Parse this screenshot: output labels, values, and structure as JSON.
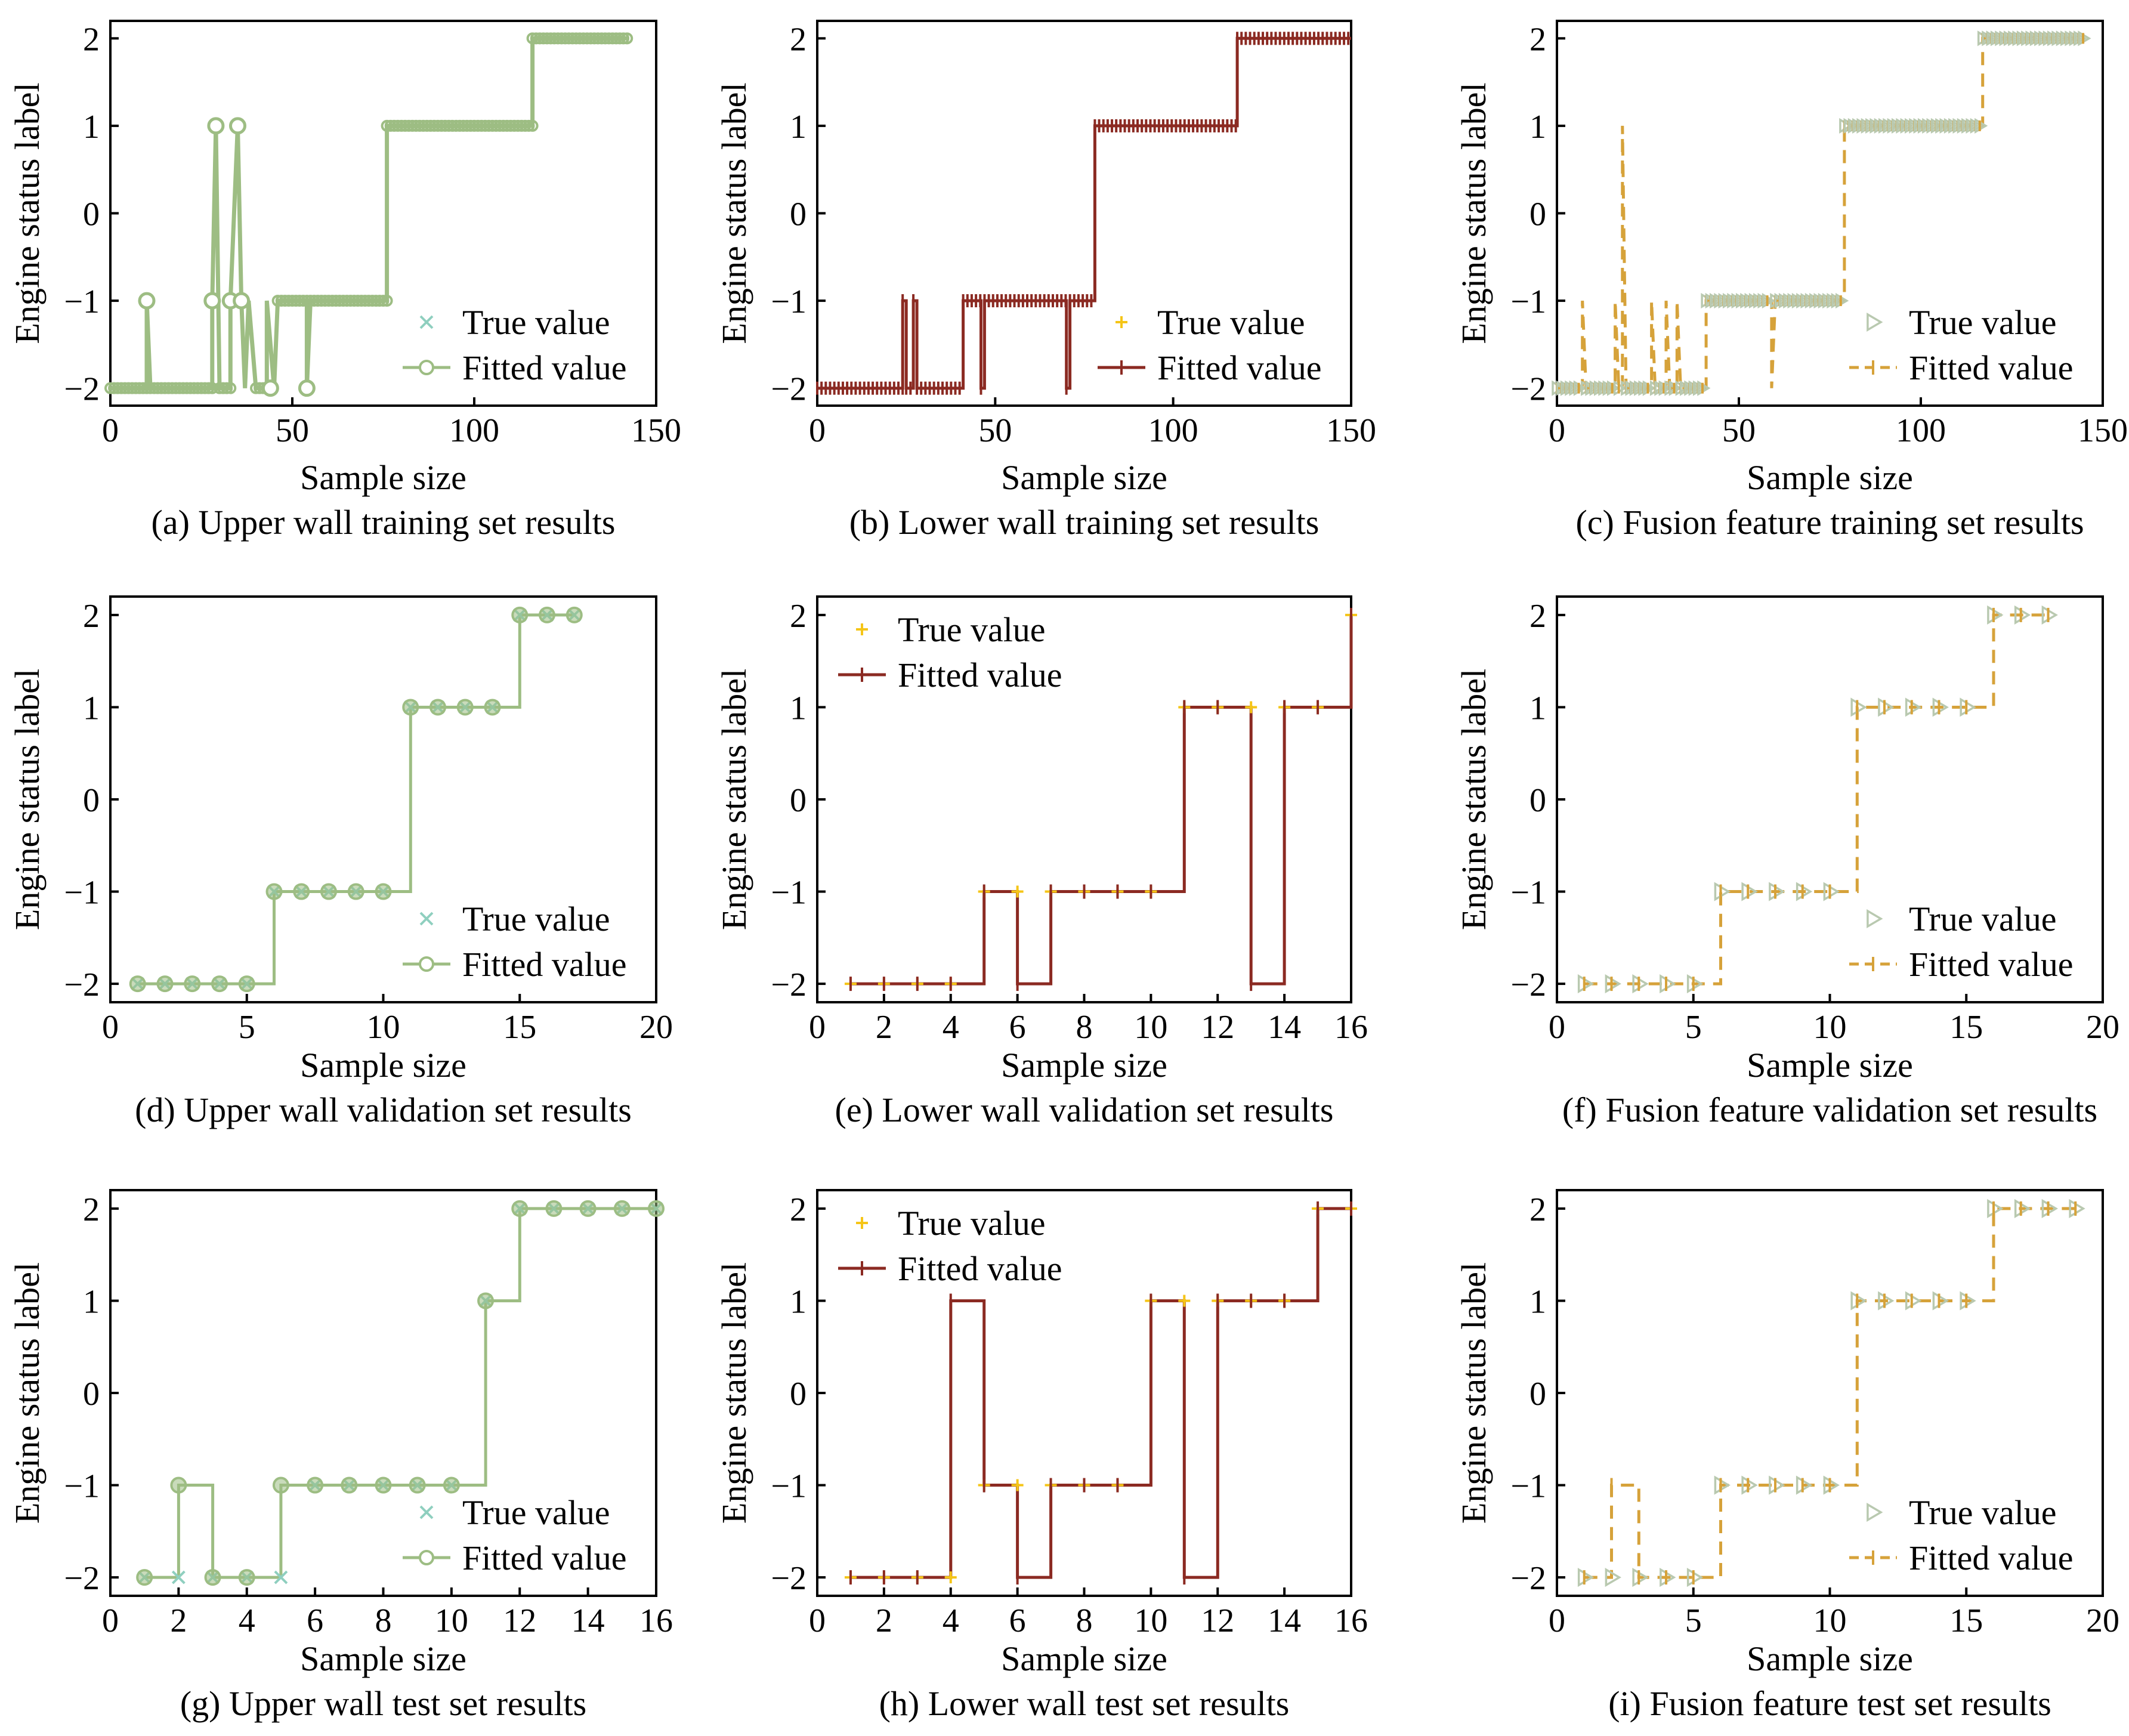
{
  "figure": {
    "colors": {
      "upper": "#9dbd83",
      "lower": "#8b2a22",
      "fusion": "#d6a23a",
      "true_lower": "#f5c518",
      "true_fusion_marker": "#b9c9b0",
      "true_upper": "#8fcfbf"
    }
  },
  "chart_data": [
    {
      "id": "a",
      "type": "line",
      "caption": "(a) Upper wall training set results",
      "xlabel": "Sample size",
      "ylabel": "Engine status label",
      "xlim": [
        0,
        150
      ],
      "ylim": [
        -2.2,
        2.2
      ],
      "xticks": [
        0,
        50,
        100,
        150
      ],
      "yticks": [
        -2,
        -1,
        0,
        1,
        2
      ],
      "style": "upper",
      "legend_position": "lower-right",
      "legend": {
        "true": "True value",
        "fitted": "Fitted value"
      },
      "segments": [
        [
          0,
          -2
        ],
        [
          10,
          -2
        ],
        [
          10,
          -1
        ],
        [
          11,
          -2
        ],
        [
          28,
          -2
        ],
        [
          28,
          -1
        ],
        [
          29,
          1
        ],
        [
          30,
          -2
        ],
        [
          33,
          -2
        ],
        [
          33,
          -1
        ],
        [
          35,
          1
        ],
        [
          36,
          -1
        ],
        [
          37,
          -2
        ],
        [
          38,
          -1
        ],
        [
          40,
          -2
        ],
        [
          43,
          -2
        ],
        [
          43,
          -1
        ],
        [
          45,
          -2
        ],
        [
          46,
          -1
        ],
        [
          54,
          -1
        ],
        [
          54,
          -2
        ],
        [
          55,
          -1
        ],
        [
          76,
          -1
        ],
        [
          76,
          1
        ],
        [
          116,
          1
        ],
        [
          116,
          2
        ],
        [
          142,
          2
        ]
      ],
      "markers_fitted": [
        [
          10,
          -1
        ],
        [
          29,
          1
        ],
        [
          35,
          1
        ],
        [
          28,
          -1
        ],
        [
          33,
          -1
        ],
        [
          36,
          -1
        ],
        [
          44,
          -2
        ],
        [
          54,
          -2
        ]
      ]
    },
    {
      "id": "b",
      "type": "line",
      "caption": "(b) Lower wall training set results",
      "xlabel": "Sample size",
      "ylabel": "Engine status label",
      "xlim": [
        0,
        150
      ],
      "ylim": [
        -2.2,
        2.2
      ],
      "xticks": [
        0,
        50,
        100,
        150
      ],
      "yticks": [
        -2,
        -1,
        0,
        1,
        2
      ],
      "style": "lower",
      "legend_position": "lower-right",
      "legend": {
        "true": "True value",
        "fitted": "Fitted value"
      },
      "segments": [
        [
          0,
          -2
        ],
        [
          24,
          -2
        ],
        [
          24,
          -1
        ],
        [
          25,
          -1
        ],
        [
          25,
          -2
        ],
        [
          27,
          -2
        ],
        [
          27,
          -1
        ],
        [
          28,
          -1
        ],
        [
          28,
          -2
        ],
        [
          41,
          -2
        ],
        [
          41,
          -1
        ],
        [
          46,
          -1
        ],
        [
          46,
          -2
        ],
        [
          47,
          -2
        ],
        [
          47,
          -1
        ],
        [
          70,
          -1
        ],
        [
          70,
          -2
        ],
        [
          71,
          -2
        ],
        [
          71,
          -1
        ],
        [
          78,
          -1
        ],
        [
          78,
          1
        ],
        [
          118,
          1
        ],
        [
          118,
          2
        ],
        [
          150,
          2
        ]
      ]
    },
    {
      "id": "c",
      "type": "line",
      "caption": "(c) Fusion feature training set results",
      "xlabel": "Sample size",
      "ylabel": "Engine status label",
      "xlim": [
        0,
        150
      ],
      "ylim": [
        -2.2,
        2.2
      ],
      "xticks": [
        0,
        50,
        100,
        150
      ],
      "yticks": [
        -2,
        -1,
        0,
        1,
        2
      ],
      "style": "fusion",
      "legend_position": "lower-right",
      "legend": {
        "true": "True value",
        "fitted": "Fitted value"
      },
      "segments": [
        [
          0,
          -2
        ],
        [
          7,
          -2
        ],
        [
          7,
          -1
        ],
        [
          8,
          -2
        ],
        [
          16,
          -2
        ],
        [
          16,
          -1
        ],
        [
          17,
          -2
        ],
        [
          18,
          -2
        ],
        [
          18,
          1
        ],
        [
          19,
          -2
        ],
        [
          26,
          -2
        ],
        [
          26,
          -1
        ],
        [
          27,
          -2
        ],
        [
          30,
          -2
        ],
        [
          30,
          -1
        ],
        [
          31,
          -2
        ],
        [
          33,
          -2
        ],
        [
          33,
          -1
        ],
        [
          34,
          -2
        ],
        [
          41,
          -2
        ],
        [
          41,
          -1
        ],
        [
          59,
          -1
        ],
        [
          59,
          -2
        ],
        [
          60,
          -1
        ],
        [
          79,
          -1
        ],
        [
          79,
          1
        ],
        [
          117,
          1
        ],
        [
          117,
          2
        ],
        [
          145,
          2
        ]
      ]
    },
    {
      "id": "d",
      "type": "line",
      "caption": "(d) Upper wall validation set results",
      "xlabel": "Sample size",
      "ylabel": "Engine status label",
      "xlim": [
        0,
        20
      ],
      "ylim": [
        -2.2,
        2.2
      ],
      "xticks": [
        0,
        5,
        10,
        15,
        20
      ],
      "yticks": [
        -2,
        -1,
        0,
        1,
        2
      ],
      "style": "upper",
      "legend_position": "lower-right",
      "legend": {
        "true": "True value",
        "fitted": "Fitted value"
      },
      "x": [
        1,
        2,
        3,
        4,
        5,
        6,
        7,
        8,
        9,
        10,
        11,
        12,
        13,
        14,
        15,
        16,
        17
      ],
      "true": [
        -2,
        -2,
        -2,
        -2,
        -2,
        -1,
        -1,
        -1,
        -1,
        -1,
        1,
        1,
        1,
        1,
        2,
        2,
        2
      ],
      "fitted": [
        -2,
        -2,
        -2,
        -2,
        -2,
        -1,
        -1,
        -1,
        -1,
        -1,
        1,
        1,
        1,
        1,
        2,
        2,
        2
      ]
    },
    {
      "id": "e",
      "type": "line",
      "caption": "(e) Lower wall validation set results",
      "xlabel": "Sample size",
      "ylabel": "Engine status label",
      "xlim": [
        0,
        16
      ],
      "ylim": [
        -2.2,
        2.2
      ],
      "xticks": [
        0,
        2,
        4,
        6,
        8,
        10,
        12,
        14,
        16
      ],
      "yticks": [
        -2,
        -1,
        0,
        1,
        2
      ],
      "style": "lower",
      "legend_position": "upper-left",
      "legend": {
        "true": "True value",
        "fitted": "Fitted value"
      },
      "x": [
        1,
        2,
        3,
        4,
        5,
        6,
        7,
        8,
        9,
        10,
        11,
        12,
        13,
        14,
        15,
        16
      ],
      "true": [
        -2,
        -2,
        -2,
        -2,
        -1,
        -1,
        -1,
        -1,
        -1,
        -1,
        1,
        1,
        1,
        1,
        1,
        2
      ],
      "fitted": [
        -2,
        -2,
        -2,
        -2,
        -1,
        -2,
        -1,
        -1,
        -1,
        -1,
        1,
        1,
        -2,
        1,
        1,
        2
      ]
    },
    {
      "id": "f",
      "type": "line",
      "caption": "(f) Fusion feature validation set results",
      "xlabel": "Sample size",
      "ylabel": "Engine status label",
      "xlim": [
        0,
        20
      ],
      "ylim": [
        -2.2,
        2.2
      ],
      "xticks": [
        0,
        5,
        10,
        15,
        20
      ],
      "yticks": [
        -2,
        -1,
        0,
        1,
        2
      ],
      "style": "fusion",
      "legend_position": "lower-right",
      "legend": {
        "true": "True value",
        "fitted": "Fitted value"
      },
      "x": [
        1,
        2,
        3,
        4,
        5,
        6,
        7,
        8,
        9,
        10,
        11,
        12,
        13,
        14,
        15,
        16,
        17,
        18
      ],
      "true": [
        -2,
        -2,
        -2,
        -2,
        -2,
        -1,
        -1,
        -1,
        -1,
        -1,
        1,
        1,
        1,
        1,
        1,
        2,
        2,
        2
      ],
      "fitted": [
        -2,
        -2,
        -2,
        -2,
        -2,
        -1,
        -1,
        -1,
        -1,
        -1,
        1,
        1,
        1,
        1,
        1,
        2,
        2,
        2
      ]
    },
    {
      "id": "g",
      "type": "line",
      "caption": "(g) Upper wall test set results",
      "xlabel": "Sample size",
      "ylabel": "Engine status label",
      "xlim": [
        0,
        16
      ],
      "ylim": [
        -2.2,
        2.2
      ],
      "xticks": [
        0,
        2,
        4,
        6,
        8,
        10,
        12,
        14,
        16
      ],
      "yticks": [
        -2,
        -1,
        0,
        1,
        2
      ],
      "style": "upper",
      "legend_position": "lower-right",
      "legend": {
        "true": "True value",
        "fitted": "Fitted value"
      },
      "x": [
        1,
        2,
        3,
        4,
        5,
        6,
        7,
        8,
        9,
        10,
        11,
        12,
        13,
        14,
        15,
        16
      ],
      "true": [
        -2,
        -2,
        -2,
        -2,
        -2,
        -1,
        -1,
        -1,
        -1,
        -1,
        1,
        2,
        2,
        2,
        2,
        2
      ],
      "fitted": [
        -2,
        -1,
        -2,
        -2,
        -1,
        -1,
        -1,
        -1,
        -1,
        -1,
        1,
        2,
        2,
        2,
        2,
        2
      ]
    },
    {
      "id": "h",
      "type": "line",
      "caption": "(h) Lower wall test set results",
      "xlabel": "Sample size",
      "ylabel": "Engine status label",
      "xlim": [
        0,
        16
      ],
      "ylim": [
        -2.2,
        2.2
      ],
      "xticks": [
        0,
        2,
        4,
        6,
        8,
        10,
        12,
        14,
        16
      ],
      "yticks": [
        -2,
        -1,
        0,
        1,
        2
      ],
      "style": "lower",
      "legend_position": "upper-left",
      "legend": {
        "true": "True value",
        "fitted": "Fitted value"
      },
      "x": [
        1,
        2,
        3,
        4,
        5,
        6,
        7,
        8,
        9,
        10,
        11,
        12,
        13,
        14,
        15,
        16
      ],
      "true": [
        -2,
        -2,
        -2,
        -2,
        -1,
        -1,
        -1,
        -1,
        -1,
        1,
        1,
        1,
        1,
        1,
        2,
        2
      ],
      "fitted": [
        -2,
        -2,
        -2,
        1,
        -1,
        -2,
        -1,
        -1,
        -1,
        1,
        -2,
        1,
        1,
        1,
        2,
        2
      ]
    },
    {
      "id": "i",
      "type": "line",
      "caption": "(i) Fusion feature test set results",
      "xlabel": "Sample size",
      "ylabel": "Engine status label",
      "xlim": [
        0,
        20
      ],
      "ylim": [
        -2.2,
        2.2
      ],
      "xticks": [
        0,
        5,
        10,
        15,
        20
      ],
      "yticks": [
        -2,
        -1,
        0,
        1,
        2
      ],
      "style": "fusion",
      "legend_position": "lower-right",
      "legend": {
        "true": "True value",
        "fitted": "Fitted value"
      },
      "x": [
        1,
        2,
        3,
        4,
        5,
        6,
        7,
        8,
        9,
        10,
        11,
        12,
        13,
        14,
        15,
        16,
        17,
        18,
        19
      ],
      "true": [
        -2,
        -2,
        -2,
        -2,
        -2,
        -1,
        -1,
        -1,
        -1,
        -1,
        1,
        1,
        1,
        1,
        1,
        2,
        2,
        2,
        2
      ],
      "fitted": [
        -2,
        -1,
        -2,
        -2,
        -2,
        -1,
        -1,
        -1,
        -1,
        -1,
        1,
        1,
        1,
        1,
        1,
        2,
        2,
        2,
        2
      ]
    }
  ]
}
